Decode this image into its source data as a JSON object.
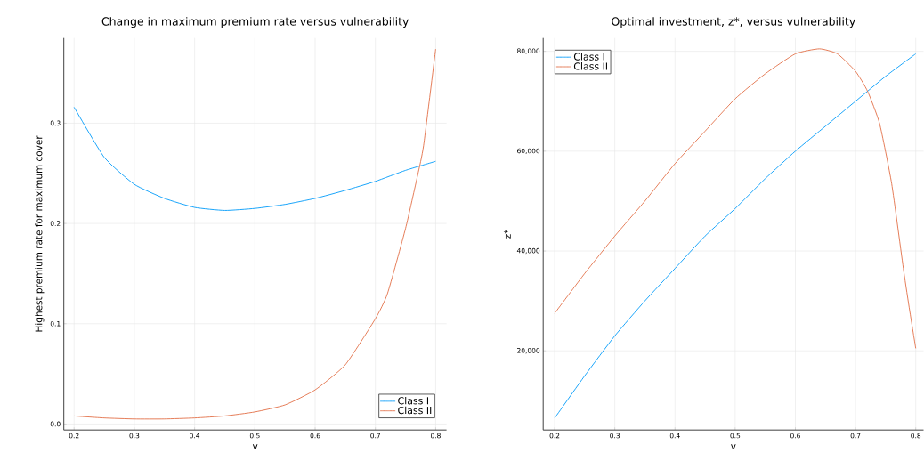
{
  "chart_data": [
    {
      "type": "line",
      "title": "Change in maximum premium rate versus vulnerability",
      "xlabel": "v",
      "ylabel": "Highest premium rate for maximum cover",
      "xlim": [
        0.183,
        0.818
      ],
      "ylim": [
        -0.006,
        0.385
      ],
      "xticks": [
        0.2,
        0.3,
        0.4,
        0.5,
        0.6,
        0.7,
        0.8
      ],
      "yticks": [
        {
          "value": 0,
          "label": "0.0"
        },
        0.1,
        0.2,
        0.3
      ],
      "grid": true,
      "legend": "bottom right",
      "series": [
        {
          "name": "Class I",
          "color": "#009af9",
          "x": [
            0.2,
            0.25,
            0.3,
            0.35,
            0.4,
            0.45,
            0.5,
            0.55,
            0.6,
            0.65,
            0.7,
            0.75,
            0.8
          ],
          "values": [
            0.316,
            0.266,
            0.239,
            0.225,
            0.216,
            0.213,
            0.215,
            0.219,
            0.225,
            0.233,
            0.242,
            0.253,
            0.262
          ]
        },
        {
          "name": "Class II",
          "color": "#e26f46",
          "x": [
            0.2,
            0.25,
            0.3,
            0.35,
            0.4,
            0.45,
            0.5,
            0.55,
            0.6,
            0.65,
            0.7,
            0.72,
            0.75,
            0.77,
            0.78,
            0.8
          ],
          "values": [
            0.008,
            0.006,
            0.005,
            0.005,
            0.006,
            0.008,
            0.012,
            0.019,
            0.034,
            0.059,
            0.105,
            0.13,
            0.195,
            0.248,
            0.278,
            0.374
          ]
        }
      ]
    },
    {
      "type": "line",
      "title": "Optimal investment, z*, versus vulnerability",
      "xlabel": "v",
      "ylabel": "z*",
      "xlim": [
        0.181,
        0.813
      ],
      "ylim": [
        4140,
        82670
      ],
      "xticks": [
        0.2,
        0.3,
        0.4,
        0.5,
        0.6,
        0.7,
        0.8
      ],
      "yticks": [
        {
          "value": 20000,
          "label": "20,000"
        },
        {
          "value": 40000,
          "label": "40,000"
        },
        {
          "value": 60000,
          "label": "60,000"
        },
        {
          "value": 80000,
          "label": "80,000"
        }
      ],
      "grid": true,
      "legend": "top left",
      "series": [
        {
          "name": "Class I",
          "color": "#009af9",
          "x": [
            0.2,
            0.25,
            0.3,
            0.35,
            0.4,
            0.45,
            0.5,
            0.55,
            0.6,
            0.65,
            0.7,
            0.75,
            0.8
          ],
          "values": [
            6500,
            15000,
            23000,
            30000,
            36500,
            43000,
            48500,
            54500,
            60000,
            65000,
            70000,
            75000,
            79500
          ]
        },
        {
          "name": "Class II",
          "color": "#e26f46",
          "x": [
            0.2,
            0.25,
            0.3,
            0.35,
            0.4,
            0.45,
            0.5,
            0.55,
            0.6,
            0.64,
            0.67,
            0.7,
            0.72,
            0.74,
            0.76,
            0.78,
            0.79,
            0.8
          ],
          "values": [
            27500,
            35500,
            43000,
            50000,
            57500,
            64000,
            70500,
            75500,
            79500,
            80500,
            79500,
            76000,
            72000,
            65500,
            53500,
            36000,
            28000,
            20500
          ]
        }
      ]
    }
  ]
}
